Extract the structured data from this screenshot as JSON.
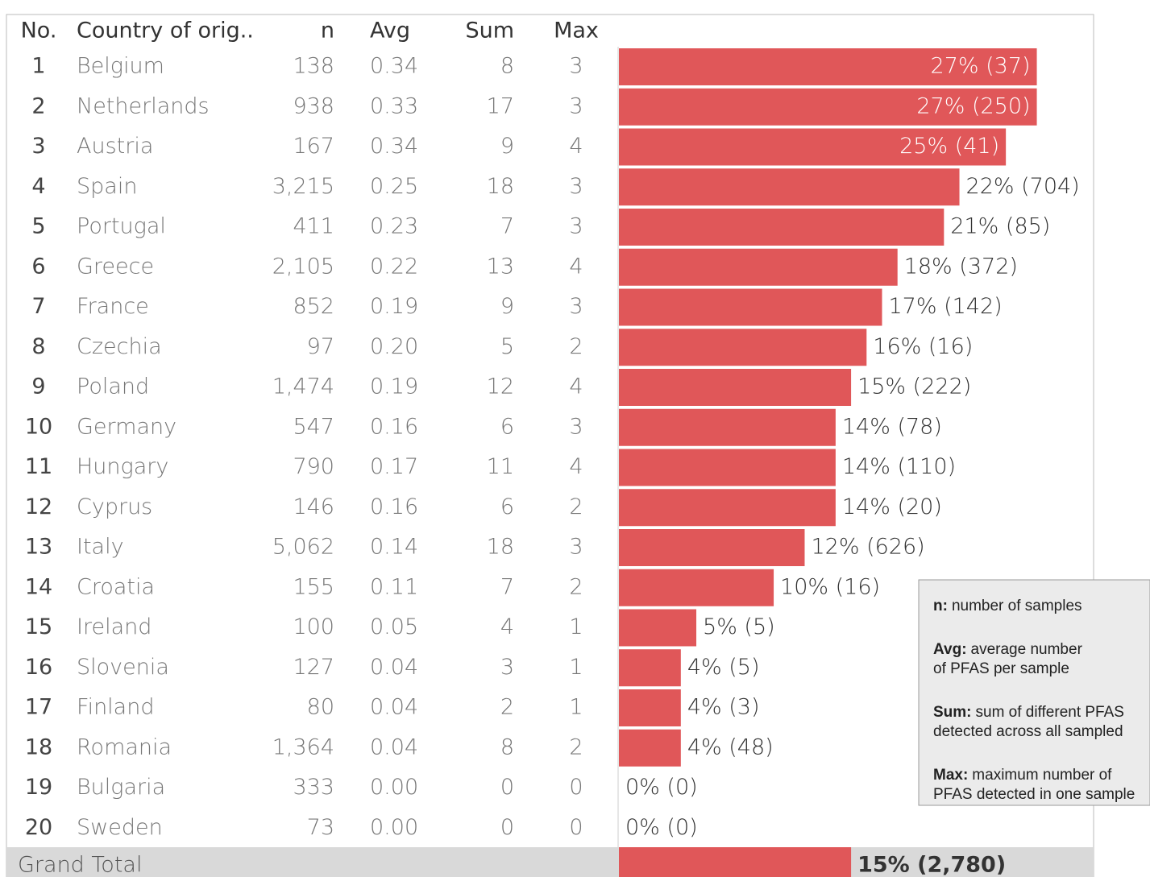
{
  "chart_data": {
    "type": "bar",
    "columns": [
      "No.",
      "Country of orig..",
      "n",
      "Avg",
      "Sum",
      "Max"
    ],
    "rows": [
      [
        "1",
        "Belgium",
        "138",
        "0.34",
        "8",
        "3"
      ],
      [
        "2",
        "Netherlands",
        "938",
        "0.33",
        "17",
        "3"
      ],
      [
        "3",
        "Austria",
        "167",
        "0.34",
        "9",
        "4"
      ],
      [
        "4",
        "Spain",
        "3,215",
        "0.25",
        "18",
        "3"
      ],
      [
        "5",
        "Portugal",
        "411",
        "0.23",
        "7",
        "3"
      ],
      [
        "6",
        "Greece",
        "2,105",
        "0.22",
        "13",
        "4"
      ],
      [
        "7",
        "France",
        "852",
        "0.19",
        "9",
        "3"
      ],
      [
        "8",
        "Czechia",
        "97",
        "0.20",
        "5",
        "2"
      ],
      [
        "9",
        "Poland",
        "1,474",
        "0.19",
        "12",
        "4"
      ],
      [
        "10",
        "Germany",
        "547",
        "0.16",
        "6",
        "3"
      ],
      [
        "11",
        "Hungary",
        "790",
        "0.17",
        "11",
        "4"
      ],
      [
        "12",
        "Cyprus",
        "146",
        "0.16",
        "6",
        "2"
      ],
      [
        "13",
        "Italy",
        "5,062",
        "0.14",
        "18",
        "3"
      ],
      [
        "14",
        "Croatia",
        "155",
        "0.11",
        "7",
        "2"
      ],
      [
        "15",
        "Ireland",
        "100",
        "0.05",
        "4",
        "1"
      ],
      [
        "16",
        "Slovenia",
        "127",
        "0.04",
        "3",
        "1"
      ],
      [
        "17",
        "Finland",
        "80",
        "0.04",
        "2",
        "1"
      ],
      [
        "18",
        "Romania",
        "1,364",
        "0.04",
        "8",
        "2"
      ],
      [
        "19",
        "Bulgaria",
        "333",
        "0.00",
        "0",
        "0"
      ],
      [
        "20",
        "Sweden",
        "73",
        "0.00",
        "0",
        "0"
      ]
    ],
    "values": [
      27,
      27,
      25,
      22,
      21,
      18,
      17,
      16,
      15,
      14,
      14,
      14,
      12,
      10,
      5,
      4,
      4,
      4,
      0,
      0
    ],
    "value_labels": [
      "27% (37)",
      "27% (250)",
      "25% (41)",
      "22% (704)",
      "21% (85)",
      "18% (372)",
      "17% (142)",
      "16% (16)",
      "15% (222)",
      "14% (78)",
      "14% (110)",
      "14% (20)",
      "12% (626)",
      "10% (16)",
      "5% (5)",
      "4% (5)",
      "4% (3)",
      "4% (48)",
      "0% (0)",
      "0% (0)"
    ],
    "color": "#e05759",
    "xlim": [
      0,
      34
    ],
    "total": {
      "label": "Grand Total",
      "value": 15,
      "value_label": "15% (2,780)"
    },
    "notes": [
      {
        "term": "n:",
        "text": [
          "number of samples"
        ]
      },
      {
        "term": "Avg:",
        "text": [
          "average number",
          "of PFAS per sample"
        ]
      },
      {
        "term": "Sum:",
        "text": [
          "sum of different PFAS",
          "detected across all sampled"
        ]
      },
      {
        "term": "Max:",
        "text": [
          "maximum number of",
          "PFAS detected in one sample"
        ]
      }
    ]
  }
}
